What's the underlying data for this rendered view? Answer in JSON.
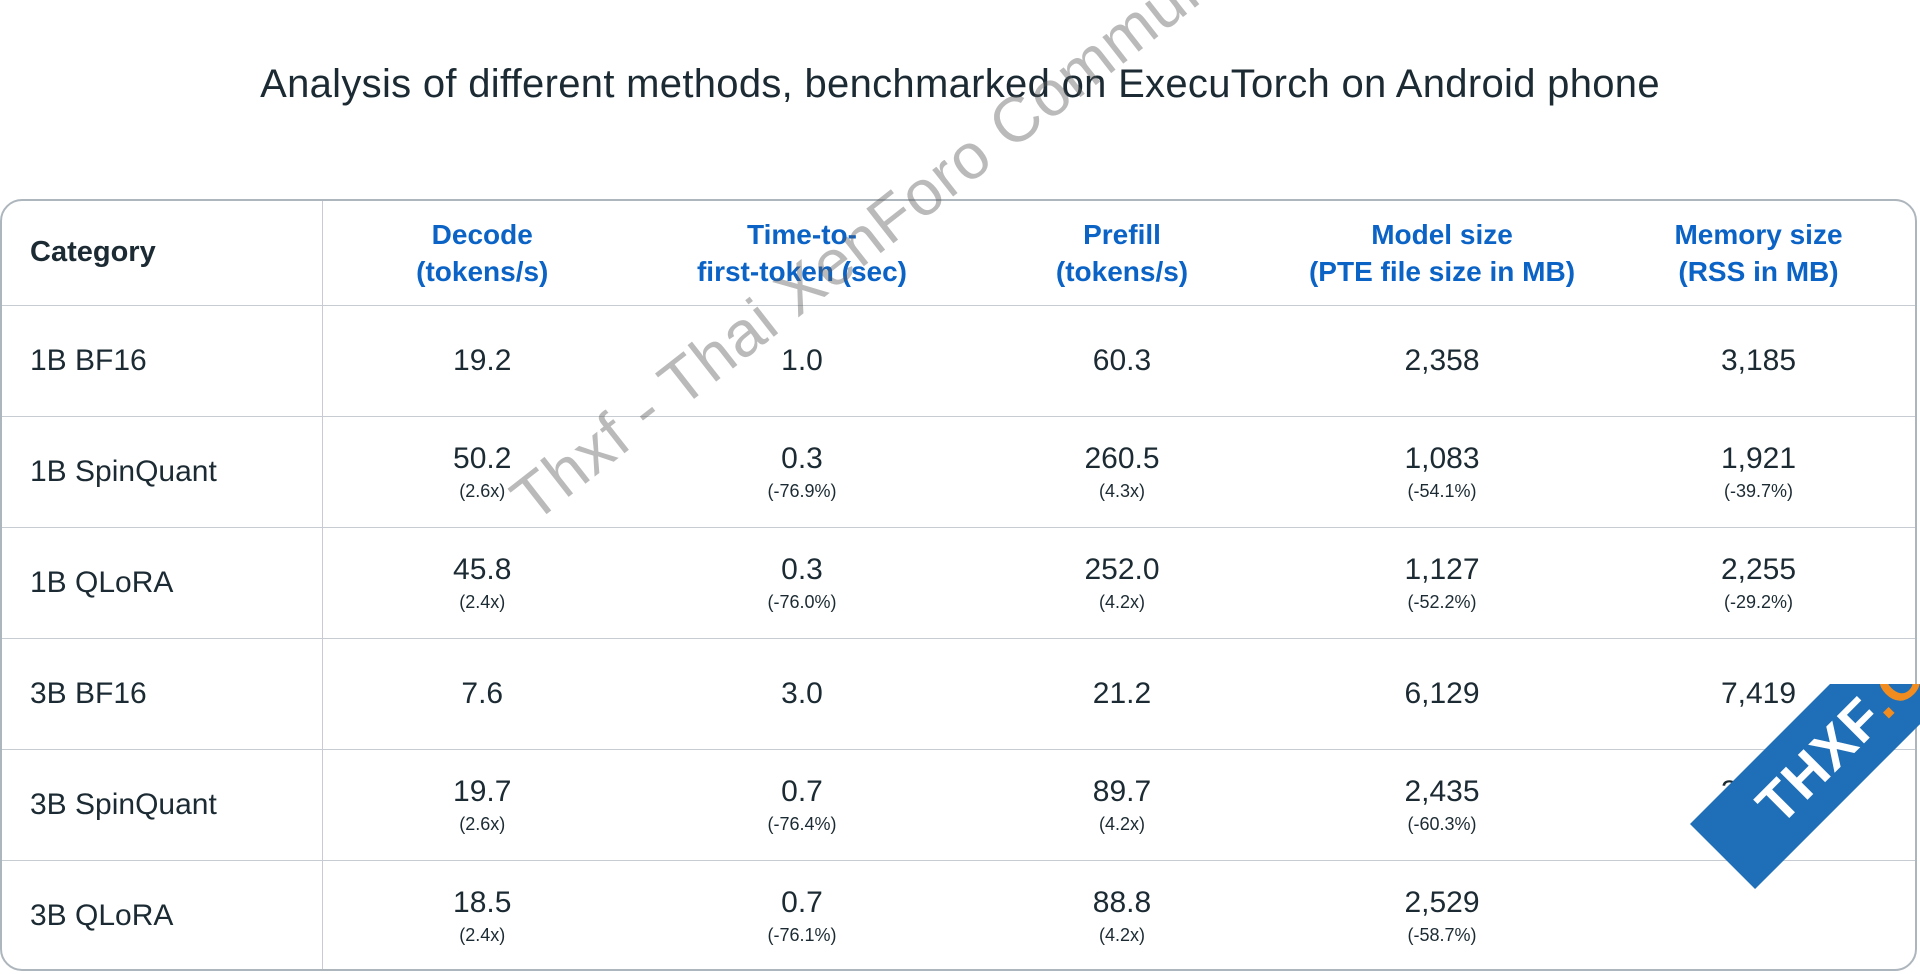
{
  "title": "Analysis of different methods, benchmarked on ExecuTorch on Android phone",
  "table": {
    "category_header": "Category",
    "columns": [
      {
        "line1": "Decode",
        "line2": "(tokens/s)"
      },
      {
        "line1": "Time-to-",
        "line2": "first-token (sec)"
      },
      {
        "line1": "Prefill",
        "line2": "(tokens/s)"
      },
      {
        "line1": "Model size",
        "line2": "(PTE file size in MB)"
      },
      {
        "line1": "Memory size",
        "line2": "(RSS in MB)"
      }
    ],
    "rows": [
      {
        "category": "1B BF16",
        "cells": [
          {
            "value": "19.2",
            "delta": ""
          },
          {
            "value": "1.0",
            "delta": ""
          },
          {
            "value": "60.3",
            "delta": ""
          },
          {
            "value": "2,358",
            "delta": ""
          },
          {
            "value": "3,185",
            "delta": ""
          }
        ]
      },
      {
        "category": "1B SpinQuant",
        "cells": [
          {
            "value": "50.2",
            "delta": "(2.6x)"
          },
          {
            "value": "0.3",
            "delta": "(-76.9%)"
          },
          {
            "value": "260.5",
            "delta": "(4.3x)"
          },
          {
            "value": "1,083",
            "delta": "(-54.1%)"
          },
          {
            "value": "1,921",
            "delta": "(-39.7%)"
          }
        ]
      },
      {
        "category": "1B QLoRA",
        "cells": [
          {
            "value": "45.8",
            "delta": "(2.4x)"
          },
          {
            "value": "0.3",
            "delta": "(-76.0%)"
          },
          {
            "value": "252.0",
            "delta": "(4.2x)"
          },
          {
            "value": "1,127",
            "delta": "(-52.2%)"
          },
          {
            "value": "2,255",
            "delta": "(-29.2%)"
          }
        ]
      },
      {
        "category": "3B BF16",
        "cells": [
          {
            "value": "7.6",
            "delta": ""
          },
          {
            "value": "3.0",
            "delta": ""
          },
          {
            "value": "21.2",
            "delta": ""
          },
          {
            "value": "6,129",
            "delta": ""
          },
          {
            "value": "7,419",
            "delta": ""
          }
        ]
      },
      {
        "category": "3B SpinQuant",
        "cells": [
          {
            "value": "19.7",
            "delta": "(2.6x)"
          },
          {
            "value": "0.7",
            "delta": "(-76.4%)"
          },
          {
            "value": "89.7",
            "delta": "(4.2x)"
          },
          {
            "value": "2,435",
            "delta": "(-60.3%)"
          },
          {
            "value": "3,726",
            "delta": "(-49.8%)"
          }
        ]
      },
      {
        "category": "3B QLoRA",
        "cells": [
          {
            "value": "18.5",
            "delta": "(2.4x)"
          },
          {
            "value": "0.7",
            "delta": "(-76.1%)"
          },
          {
            "value": "88.8",
            "delta": "(4.2x)"
          },
          {
            "value": "2,529",
            "delta": "(-58.7%)"
          },
          {
            "value": "",
            "delta": ""
          }
        ]
      }
    ]
  },
  "watermark": {
    "text": "Thxf - Thai XenForo Community"
  },
  "badge": {
    "text_main": "THXF",
    "text_org": ".ORG"
  },
  "colors": {
    "header_accent": "#0b63c6",
    "text": "#1c2b33",
    "border": "#c6ccd1",
    "badge_blue": "#1e6fb8",
    "badge_orange": "#f28c1e"
  }
}
